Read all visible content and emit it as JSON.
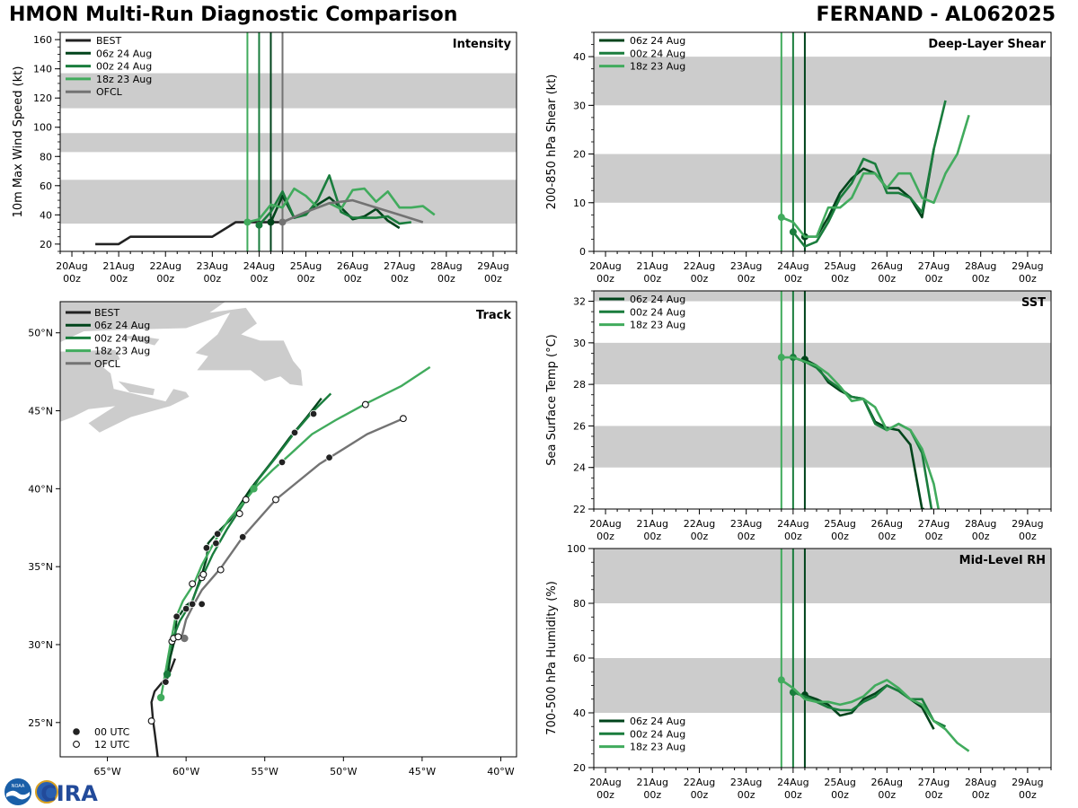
{
  "header": {
    "title": "HMON Multi-Run Diagnostic Comparison",
    "storm": "FERNAND - AL062025"
  },
  "colors": {
    "best": "#222222",
    "run1": "#00441b",
    "run2": "#1a7d3d",
    "run3": "#41ab5d",
    "ofcl": "#737373",
    "band": "#cccccc"
  },
  "time_axis": {
    "start_day": 20,
    "end_day": 29,
    "labels": [
      [
        "20Aug",
        "00z"
      ],
      [
        "21Aug",
        "00z"
      ],
      [
        "22Aug",
        "00z"
      ],
      [
        "23Aug",
        "00z"
      ],
      [
        "24Aug",
        "00z"
      ],
      [
        "25Aug",
        "00z"
      ],
      [
        "26Aug",
        "00z"
      ],
      [
        "27Aug",
        "00z"
      ],
      [
        "28Aug",
        "00z"
      ],
      [
        "29Aug",
        "00z"
      ]
    ]
  },
  "init_times": [
    24.25,
    24.0,
    23.75
  ],
  "chart_data": [
    {
      "id": "intensity",
      "type": "line",
      "title": "Intensity",
      "ylabel": "10m Max Wind Speed (kt)",
      "ylim": [
        15,
        165
      ],
      "yticks": [
        20,
        40,
        60,
        80,
        100,
        120,
        140,
        160
      ],
      "bands": [
        [
          34,
          64
        ],
        [
          83,
          96
        ],
        [
          113,
          137
        ]
      ],
      "vlines": [
        23.75,
        24.0,
        24.25,
        24.5
      ],
      "legend": [
        "BEST",
        "06z 24 Aug",
        "00z 24 Aug",
        "18z 23 Aug",
        "OFCL"
      ],
      "series": [
        {
          "name": "BEST",
          "color_key": "best",
          "x": [
            20.5,
            21.0,
            21.25,
            22.0,
            23.0,
            23.5,
            24.0,
            24.5
          ],
          "y": [
            20,
            20,
            25,
            25,
            25,
            35,
            35,
            35
          ]
        },
        {
          "name": "06z 24 Aug",
          "color_key": "run1",
          "x": [
            24.25,
            24.5,
            24.75,
            25.0,
            25.25,
            25.5,
            25.75,
            26.0,
            26.25,
            26.5,
            26.75,
            27.0
          ],
          "y": [
            35,
            53,
            38,
            41,
            47,
            52,
            45,
            37,
            39,
            44,
            36,
            31
          ]
        },
        {
          "name": "00z 24 Aug",
          "color_key": "run2",
          "x": [
            24.0,
            24.25,
            24.5,
            24.75,
            25.0,
            25.25,
            25.5,
            25.75,
            26.0,
            26.25,
            26.5,
            26.75,
            27.0,
            27.25
          ],
          "y": [
            33,
            42,
            56,
            38,
            40,
            50,
            67,
            42,
            38,
            38,
            38,
            39,
            34,
            35
          ]
        },
        {
          "name": "18z 23 Aug",
          "color_key": "run3",
          "x": [
            23.75,
            24.0,
            24.25,
            24.5,
            24.75,
            25.0,
            25.25,
            25.5,
            25.75,
            26.0,
            26.25,
            26.5,
            26.75,
            27.0,
            27.25,
            27.5,
            27.75
          ],
          "y": [
            35,
            37,
            47,
            45,
            58,
            53,
            45,
            48,
            44,
            57,
            58,
            49,
            56,
            45,
            45,
            46,
            40
          ]
        },
        {
          "name": "OFCL",
          "color_key": "ofcl",
          "x": [
            24.5,
            25.0,
            25.5,
            26.0,
            26.5,
            27.0,
            27.5
          ],
          "y": [
            35,
            42,
            48,
            50,
            45,
            40,
            35
          ]
        }
      ]
    },
    {
      "id": "shear",
      "type": "line",
      "title": "Deep-Layer Shear",
      "ylabel": "200-850 hPa Shear (kt)",
      "ylim": [
        0,
        45
      ],
      "yticks": [
        0,
        10,
        20,
        30,
        40
      ],
      "bands": [
        [
          10,
          20
        ],
        [
          30,
          40
        ]
      ],
      "vlines": [
        23.75,
        24.0,
        24.25
      ],
      "legend": [
        "06z 24 Aug",
        "00z 24 Aug",
        "18z 23 Aug"
      ],
      "series": [
        {
          "name": "06z 24 Aug",
          "color_key": "run1",
          "x": [
            24.25,
            24.5,
            24.75,
            25.0,
            25.25,
            25.5,
            25.75,
            26.0,
            26.25,
            26.5,
            26.75,
            27.0
          ],
          "y": [
            3,
            3,
            7,
            12,
            15,
            17,
            16,
            13,
            13,
            11,
            7,
            21
          ]
        },
        {
          "name": "00z 24 Aug",
          "color_key": "run2",
          "x": [
            24.0,
            24.25,
            24.5,
            24.75,
            25.0,
            25.25,
            25.5,
            25.75,
            26.0,
            26.25,
            26.5,
            26.75,
            27.0,
            27.25
          ],
          "y": [
            4,
            1,
            2,
            6,
            11,
            14,
            19,
            18,
            12,
            12,
            11,
            8,
            21,
            31
          ]
        },
        {
          "name": "18z 23 Aug",
          "color_key": "run3",
          "x": [
            23.75,
            24.0,
            24.25,
            24.5,
            24.75,
            25.0,
            25.25,
            25.5,
            25.75,
            26.0,
            26.25,
            26.5,
            26.75,
            27.0,
            27.25,
            27.5,
            27.75
          ],
          "y": [
            7,
            6,
            3,
            3,
            9,
            9,
            11,
            16,
            16,
            13,
            16,
            16,
            11,
            10,
            16,
            20,
            28
          ]
        }
      ]
    },
    {
      "id": "sst",
      "type": "line",
      "title": "SST",
      "ylabel": "Sea Surface Temp (°C)",
      "ylim": [
        22,
        32.5
      ],
      "yticks": [
        22,
        24,
        26,
        28,
        30,
        32
      ],
      "bands": [
        [
          24,
          26
        ],
        [
          28,
          30
        ],
        [
          32,
          33
        ]
      ],
      "vlines": [
        23.75,
        24.0,
        24.25
      ],
      "legend": [
        "06z 24 Aug",
        "00z 24 Aug",
        "18z 23 Aug"
      ],
      "series": [
        {
          "name": "06z 24 Aug",
          "color_key": "run1",
          "x": [
            24.25,
            24.5,
            24.75,
            25.0,
            25.25,
            25.5,
            25.75,
            26.0,
            26.25,
            26.5,
            26.75,
            26.8
          ],
          "y": [
            29.2,
            28.9,
            28.1,
            27.7,
            27.4,
            27.3,
            26.2,
            25.9,
            25.8,
            25.1,
            22.0,
            22.0
          ]
        },
        {
          "name": "00z 24 Aug",
          "color_key": "run2",
          "x": [
            24.0,
            24.25,
            24.5,
            24.75,
            25.0,
            25.25,
            25.5,
            25.75,
            26.0,
            26.25,
            26.5,
            26.75,
            26.95
          ],
          "y": [
            29.3,
            29.1,
            28.8,
            28.2,
            27.8,
            27.4,
            27.3,
            26.1,
            25.8,
            26.1,
            25.8,
            24.7,
            22.0
          ]
        },
        {
          "name": "18z 23 Aug",
          "color_key": "run3",
          "x": [
            23.75,
            24.0,
            24.25,
            24.5,
            24.75,
            25.0,
            25.25,
            25.5,
            25.75,
            26.0,
            26.25,
            26.5,
            26.75,
            27.0,
            27.1
          ],
          "y": [
            29.3,
            29.3,
            29.1,
            28.9,
            28.5,
            27.9,
            27.2,
            27.3,
            26.9,
            25.8,
            26.1,
            25.8,
            24.9,
            23.2,
            22.0
          ]
        }
      ]
    },
    {
      "id": "rh",
      "type": "line",
      "title": "Mid-Level RH",
      "ylabel": "700-500 hPa Humidity (%)",
      "ylim": [
        20,
        100
      ],
      "yticks": [
        20,
        40,
        60,
        80,
        100
      ],
      "bands": [
        [
          40,
          60
        ],
        [
          80,
          100
        ]
      ],
      "vlines": [
        23.75,
        24.0,
        24.25
      ],
      "legend": [
        "06z 24 Aug",
        "00z 24 Aug",
        "18z 23 Aug"
      ],
      "series": [
        {
          "name": "06z 24 Aug",
          "color_key": "run1",
          "x": [
            24.25,
            24.5,
            24.75,
            25.0,
            25.25,
            25.5,
            25.75,
            26.0,
            26.25,
            26.5,
            26.75,
            27.0
          ],
          "y": [
            46.5,
            45,
            43,
            39,
            40,
            45,
            47,
            50,
            48,
            45,
            42,
            34
          ]
        },
        {
          "name": "00z 24 Aug",
          "color_key": "run2",
          "x": [
            24.0,
            24.25,
            24.5,
            24.75,
            25.0,
            25.25,
            25.5,
            25.75,
            26.0,
            26.25,
            26.5,
            26.75,
            27.0,
            27.25
          ],
          "y": [
            47.5,
            46,
            44,
            42,
            41,
            41,
            44,
            46,
            50,
            48,
            45,
            45,
            37,
            35
          ]
        },
        {
          "name": "18z 23 Aug",
          "color_key": "run3",
          "x": [
            23.75,
            24.0,
            24.25,
            24.5,
            24.75,
            25.0,
            25.25,
            25.5,
            25.75,
            26.0,
            26.25,
            26.5,
            26.75,
            27.0,
            27.25,
            27.5,
            27.75
          ],
          "y": [
            52,
            49,
            45,
            44,
            44,
            43,
            44,
            46,
            50,
            52,
            49,
            45,
            43,
            37,
            34,
            29,
            26
          ]
        }
      ]
    },
    {
      "id": "track",
      "type": "scatter",
      "title": "Track",
      "xlim": [
        -68,
        -39
      ],
      "ylim": [
        22.8,
        52
      ],
      "xticks": [
        [
          -65,
          "65°W"
        ],
        [
          -60,
          "60°W"
        ],
        [
          -55,
          "55°W"
        ],
        [
          -50,
          "50°W"
        ],
        [
          -45,
          "45°W"
        ],
        [
          -40,
          "40°W"
        ]
      ],
      "yticks": [
        [
          25,
          "25°N"
        ],
        [
          30,
          "30°N"
        ],
        [
          35,
          "35°N"
        ],
        [
          40,
          "40°N"
        ],
        [
          45,
          "45°N"
        ],
        [
          50,
          "50°N"
        ]
      ],
      "legend": [
        "BEST",
        "06z 24 Aug",
        "00z 24 Aug",
        "18z 23 Aug",
        "OFCL"
      ],
      "marker_legend": [
        "00 UTC",
        "12 UTC"
      ],
      "series": [
        {
          "name": "BEST",
          "color_key": "best",
          "lon": [
            -61.8,
            -61.9,
            -62.0,
            -62.1,
            -62.2,
            -62.0,
            -61.5,
            -61.0,
            -60.7
          ],
          "lat": [
            22.8,
            23.6,
            24.4,
            25.1,
            26.3,
            27.0,
            27.6,
            28.3,
            29.1
          ]
        },
        {
          "name": "06z 24 Aug",
          "color_key": "run1",
          "lon": [
            -61.2,
            -61.0,
            -60.7,
            -60.6,
            -60.4,
            -60.0,
            -59.6,
            -59.0,
            -58.7,
            -58.6,
            -58.0,
            -57.2,
            -55.9,
            -54.5,
            -53.4,
            -52.4,
            -51.4
          ],
          "lat": [
            27.8,
            29.2,
            30.4,
            31.8,
            31.9,
            32.5,
            32.8,
            34.5,
            35.5,
            36.5,
            37.2,
            38.0,
            40.0,
            41.8,
            43.3,
            44.5,
            45.8
          ]
        },
        {
          "name": "00z 24 Aug",
          "color_key": "run2",
          "lon": [
            -61.3,
            -61.1,
            -60.8,
            -60.4,
            -60.1,
            -59.6,
            -59.3,
            -58.9,
            -58.3,
            -57.4,
            -56.5,
            -55.4,
            -54.3,
            -53.1,
            -52.0,
            -50.8
          ],
          "lat": [
            28.0,
            29.4,
            30.5,
            31.5,
            32.0,
            32.8,
            33.6,
            34.5,
            35.8,
            37.4,
            38.8,
            40.6,
            42.0,
            43.6,
            44.9,
            46.1
          ]
        },
        {
          "name": "18z 23 Aug",
          "color_key": "run3",
          "lon": [
            -61.6,
            -61.3,
            -61.0,
            -60.7,
            -60.2,
            -59.5,
            -59.0,
            -58.2,
            -57.3,
            -56.2,
            -55.5,
            -54.5,
            -53.4,
            -52.0,
            -50.5,
            -48.5,
            -46.3,
            -44.5
          ],
          "lat": [
            26.6,
            28.3,
            30.0,
            31.6,
            32.8,
            33.9,
            35.1,
            36.6,
            38.0,
            39.3,
            40.2,
            41.2,
            42.2,
            43.5,
            44.4,
            45.5,
            46.6,
            47.8
          ]
        },
        {
          "name": "OFCL",
          "color_key": "ofcl",
          "lon": [
            -60.3,
            -60.0,
            -59.5,
            -59.0,
            -57.8,
            -56.4,
            -54.3,
            -51.5,
            -48.5,
            -46.2
          ],
          "lat": [
            30.4,
            31.6,
            32.6,
            33.5,
            34.9,
            36.9,
            39.3,
            41.6,
            43.5,
            44.5
          ]
        }
      ],
      "markers_00": [
        {
          "lon": -61.6,
          "lat": 26.6,
          "color_key": "run3"
        },
        {
          "lon": -61.3,
          "lat": 27.6,
          "color_key": "best"
        },
        {
          "lon": -61.2,
          "lat": 28.1,
          "color_key": "run2"
        },
        {
          "lon": -60.6,
          "lat": 31.8,
          "color_key": "best"
        },
        {
          "lon": -60.0,
          "lat": 32.3,
          "color_key": "best"
        },
        {
          "lon": -59.6,
          "lat": 32.6,
          "color_key": "best"
        },
        {
          "lon": -59.0,
          "lat": 32.6,
          "color_key": "best"
        },
        {
          "lon": -58.7,
          "lat": 36.2,
          "color_key": "best"
        },
        {
          "lon": -58.1,
          "lat": 36.5,
          "color_key": "best"
        },
        {
          "lon": -58.0,
          "lat": 37.1,
          "color_key": "best"
        },
        {
          "lon": -56.4,
          "lat": 36.9,
          "color_key": "best"
        },
        {
          "lon": -55.7,
          "lat": 40.0,
          "color_key": "run3"
        },
        {
          "lon": -53.9,
          "lat": 41.7,
          "color_key": "best"
        },
        {
          "lon": -53.1,
          "lat": 43.6,
          "color_key": "best"
        },
        {
          "lon": -51.9,
          "lat": 44.8,
          "color_key": "best"
        },
        {
          "lon": -50.9,
          "lat": 42.0,
          "color_key": "best"
        },
        {
          "lon": -60.1,
          "lat": 30.4,
          "color_key": "ofcl"
        }
      ],
      "markers_12": [
        {
          "lon": -62.2,
          "lat": 25.1
        },
        {
          "lon": -60.9,
          "lat": 30.2
        },
        {
          "lon": -60.8,
          "lat": 30.4
        },
        {
          "lon": -60.5,
          "lat": 30.5
        },
        {
          "lon": -59.6,
          "lat": 33.9
        },
        {
          "lon": -59.0,
          "lat": 34.3
        },
        {
          "lon": -58.9,
          "lat": 34.5
        },
        {
          "lon": -57.8,
          "lat": 34.8
        },
        {
          "lon": -56.6,
          "lat": 38.4
        },
        {
          "lon": -56.2,
          "lat": 39.3
        },
        {
          "lon": -54.3,
          "lat": 39.3
        },
        {
          "lon": -48.6,
          "lat": 45.4
        },
        {
          "lon": -46.2,
          "lat": 44.5
        }
      ]
    }
  ],
  "logos": {
    "noaa_text": "NOAA",
    "cira_text": "CIRA",
    "noaa_color": "#1a5fa8",
    "cira_color": "#224a9a"
  }
}
